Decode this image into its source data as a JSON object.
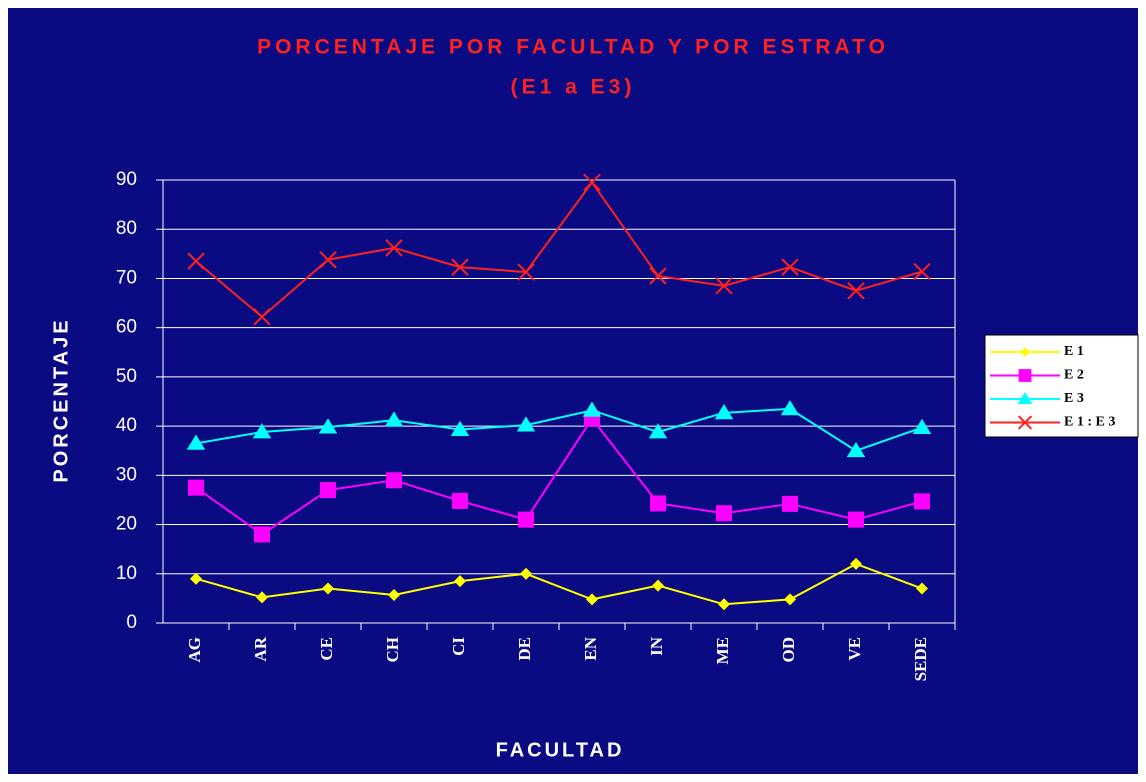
{
  "chart_data": {
    "type": "line",
    "title": "PORCENTAJE POR FACULTAD Y POR ESTRATO",
    "subtitle": "(E1 a E3)",
    "y_label": "PORCENTAJE",
    "x_label": "FACULTAD",
    "categories": [
      "AG",
      "AR",
      "CE",
      "CH",
      "CI",
      "DE",
      "EN",
      "IN",
      "ME",
      "OD",
      "VE",
      "SEDE"
    ],
    "series": [
      {
        "name": "E 1",
        "color": "#ffff00",
        "marker": "diamond",
        "values": [
          9,
          5.2,
          7,
          5.7,
          8.5,
          10,
          4.8,
          7.6,
          3.8,
          4.8,
          12,
          7
        ]
      },
      {
        "name": "E 2",
        "color": "#ff00ff",
        "marker": "square",
        "values": [
          27.5,
          18,
          27,
          29,
          24.8,
          21,
          41.5,
          24.3,
          22.3,
          24.2,
          21,
          24.7
        ]
      },
      {
        "name": "E 3",
        "color": "#00ffff",
        "marker": "triangle",
        "values": [
          36.5,
          38.8,
          39.8,
          41.2,
          39.3,
          40.2,
          43.2,
          38.8,
          42.7,
          43.5,
          35,
          39.7
        ]
      },
      {
        "name": "E 1 : E 3",
        "color": "#ff2020",
        "marker": "x",
        "values": [
          73.5,
          62.2,
          73.8,
          76.2,
          72.3,
          71.3,
          89.5,
          70.5,
          68.5,
          72.3,
          67.5,
          71.4
        ]
      }
    ],
    "ylim": [
      0,
      90
    ],
    "yticks": [
      0,
      10,
      20,
      30,
      40,
      50,
      60,
      70,
      80,
      90
    ],
    "grid": true,
    "legend": "right"
  }
}
